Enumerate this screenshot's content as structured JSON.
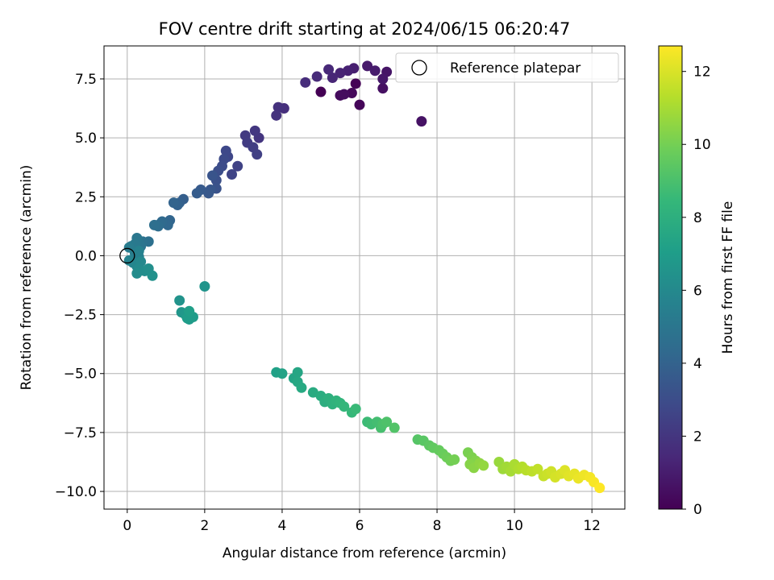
{
  "chart_data": {
    "type": "scatter",
    "title": "FOV centre drift starting at 2024/06/15 06:20:47",
    "xlabel": "Angular distance from reference (arcmin)",
    "ylabel": "Rotation from reference (arcmin)",
    "xlim": [
      -0.6,
      12.85
    ],
    "ylim": [
      -10.75,
      8.9
    ],
    "x_ticks": [
      0,
      2,
      4,
      6,
      8,
      10,
      12
    ],
    "x_tick_labels": [
      "0",
      "2",
      "4",
      "6",
      "8",
      "10",
      "12"
    ],
    "y_ticks": [
      -10.0,
      -7.5,
      -5.0,
      -2.5,
      0.0,
      2.5,
      5.0,
      7.5
    ],
    "y_tick_labels": [
      "−10.0",
      "−7.5",
      "−5.0",
      "−2.5",
      "0.0",
      "2.5",
      "5.0",
      "7.5"
    ],
    "grid": true,
    "legend": {
      "placement": "top-right",
      "entries": [
        "Reference platepar"
      ]
    },
    "reference_point": {
      "x": 0,
      "y": 0
    },
    "colorbar": {
      "label": "Hours from first FF file",
      "min": 0,
      "max": 12.7,
      "ticks": [
        0,
        2,
        4,
        6,
        8,
        10,
        12
      ],
      "tick_labels": [
        "0",
        "2",
        "4",
        "6",
        "8",
        "10",
        "12"
      ],
      "colormap": "viridis",
      "stops": [
        "#440154",
        "#482878",
        "#3e4989",
        "#31688e",
        "#26828e",
        "#1f9e89",
        "#35b779",
        "#6ece58",
        "#b5de2b",
        "#fde725"
      ]
    },
    "series": [
      {
        "points": [
          [
            5.0,
            6.95
          ],
          [
            5.9,
            7.3
          ],
          [
            6.0,
            6.4
          ],
          [
            5.8,
            6.9
          ],
          [
            5.5,
            6.8
          ],
          [
            5.6,
            6.85
          ],
          [
            6.6,
            7.1
          ],
          [
            7.6,
            5.7
          ],
          [
            6.7,
            7.8
          ],
          [
            6.6,
            7.5
          ],
          [
            6.2,
            8.05
          ],
          [
            6.4,
            7.85
          ],
          [
            5.85,
            7.95
          ],
          [
            5.7,
            7.85
          ],
          [
            5.5,
            7.75
          ],
          [
            5.3,
            7.55
          ],
          [
            5.2,
            7.9
          ],
          [
            4.9,
            7.6
          ],
          [
            4.6,
            7.35
          ],
          [
            4.05,
            6.25
          ],
          [
            3.9,
            6.3
          ],
          [
            3.85,
            5.95
          ],
          [
            3.4,
            5.0
          ],
          [
            3.3,
            5.3
          ],
          [
            3.05,
            5.1
          ],
          [
            3.1,
            4.8
          ],
          [
            3.25,
            4.6
          ],
          [
            3.35,
            4.3
          ],
          [
            2.85,
            3.8
          ],
          [
            2.7,
            3.45
          ],
          [
            2.6,
            4.2
          ],
          [
            2.55,
            4.45
          ],
          [
            2.5,
            4.1
          ],
          [
            2.45,
            3.8
          ],
          [
            2.35,
            3.6
          ],
          [
            2.3,
            3.2
          ],
          [
            2.3,
            2.85
          ],
          [
            2.2,
            3.4
          ],
          [
            2.15,
            2.8
          ],
          [
            2.1,
            2.65
          ],
          [
            1.9,
            2.8
          ],
          [
            1.8,
            2.65
          ],
          [
            1.45,
            2.4
          ],
          [
            1.35,
            2.25
          ],
          [
            1.3,
            2.15
          ],
          [
            1.2,
            2.25
          ],
          [
            1.1,
            1.5
          ],
          [
            1.05,
            1.3
          ],
          [
            0.9,
            1.45
          ],
          [
            0.85,
            1.35
          ],
          [
            0.8,
            1.25
          ],
          [
            0.7,
            1.3
          ],
          [
            0.55,
            0.6
          ],
          [
            0.4,
            0.6
          ],
          [
            0.35,
            0.4
          ],
          [
            0.3,
            0.55
          ],
          [
            0.25,
            0.75
          ],
          [
            0.2,
            0.5
          ],
          [
            0.1,
            0.4
          ],
          [
            0.05,
            0.35
          ],
          [
            0.2,
            0.1
          ],
          [
            0.3,
            -0.05
          ],
          [
            0.3,
            0.2
          ],
          [
            0.05,
            -0.2
          ],
          [
            0.15,
            -0.3
          ],
          [
            0.25,
            -0.45
          ],
          [
            0.35,
            -0.25
          ],
          [
            0.3,
            -0.55
          ],
          [
            0.25,
            -0.75
          ],
          [
            0.45,
            -0.65
          ],
          [
            0.55,
            -0.55
          ],
          [
            0.65,
            -0.85
          ],
          [
            1.35,
            -1.9
          ],
          [
            2.0,
            -1.3
          ],
          [
            1.4,
            -2.4
          ],
          [
            1.5,
            -2.5
          ],
          [
            1.6,
            -2.7
          ],
          [
            1.7,
            -2.6
          ],
          [
            1.55,
            -2.65
          ],
          [
            1.6,
            -2.35
          ],
          [
            3.85,
            -4.95
          ],
          [
            4.0,
            -5.0
          ],
          [
            4.3,
            -5.2
          ],
          [
            4.4,
            -4.95
          ],
          [
            4.4,
            -5.35
          ],
          [
            4.5,
            -5.6
          ],
          [
            4.8,
            -5.8
          ],
          [
            5.0,
            -5.95
          ],
          [
            5.1,
            -6.2
          ],
          [
            5.2,
            -6.05
          ],
          [
            5.3,
            -6.3
          ],
          [
            5.4,
            -6.15
          ],
          [
            5.5,
            -6.25
          ],
          [
            5.6,
            -6.4
          ],
          [
            5.8,
            -6.65
          ],
          [
            5.9,
            -6.5
          ],
          [
            6.2,
            -7.05
          ],
          [
            6.3,
            -7.15
          ],
          [
            6.45,
            -7.05
          ],
          [
            6.55,
            -7.3
          ],
          [
            6.6,
            -7.15
          ],
          [
            6.7,
            -7.05
          ],
          [
            6.9,
            -7.3
          ],
          [
            7.5,
            -7.8
          ],
          [
            7.65,
            -7.85
          ],
          [
            7.8,
            -8.05
          ],
          [
            7.9,
            -8.15
          ],
          [
            8.05,
            -8.25
          ],
          [
            8.15,
            -8.4
          ],
          [
            8.25,
            -8.55
          ],
          [
            8.35,
            -8.7
          ],
          [
            8.45,
            -8.65
          ],
          [
            8.8,
            -8.35
          ],
          [
            8.9,
            -8.55
          ],
          [
            9.0,
            -8.7
          ],
          [
            8.85,
            -8.85
          ],
          [
            8.95,
            -9.0
          ],
          [
            9.1,
            -8.8
          ],
          [
            9.2,
            -8.9
          ],
          [
            9.6,
            -8.75
          ],
          [
            9.7,
            -9.05
          ],
          [
            9.8,
            -8.95
          ],
          [
            9.9,
            -9.15
          ],
          [
            10.0,
            -8.85
          ],
          [
            10.1,
            -9.05
          ],
          [
            10.2,
            -8.95
          ],
          [
            10.3,
            -9.1
          ],
          [
            10.45,
            -9.15
          ],
          [
            10.6,
            -9.05
          ],
          [
            10.75,
            -9.35
          ],
          [
            10.85,
            -9.25
          ],
          [
            10.95,
            -9.15
          ],
          [
            11.05,
            -9.4
          ],
          [
            11.2,
            -9.25
          ],
          [
            11.3,
            -9.1
          ],
          [
            11.4,
            -9.35
          ],
          [
            11.55,
            -9.25
          ],
          [
            11.65,
            -9.45
          ],
          [
            11.8,
            -9.3
          ],
          [
            11.95,
            -9.4
          ],
          [
            12.05,
            -9.6
          ],
          [
            12.2,
            -9.85
          ]
        ]
      }
    ]
  }
}
